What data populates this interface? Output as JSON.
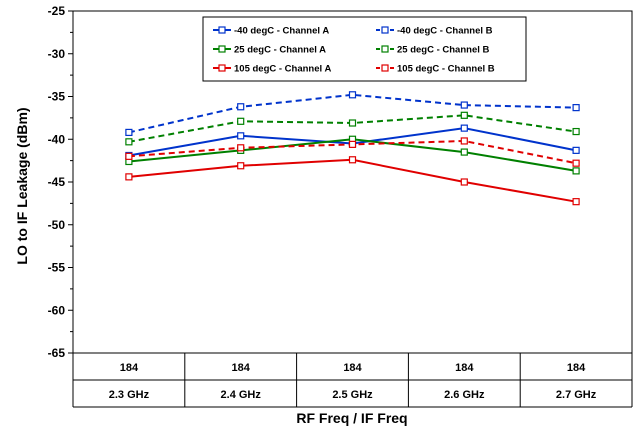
{
  "chart_data": {
    "type": "line",
    "categories": [
      {
        "if_freq": "184",
        "rf_freq": "2.3 GHz"
      },
      {
        "if_freq": "184",
        "rf_freq": "2.4 GHz"
      },
      {
        "if_freq": "184",
        "rf_freq": "2.5 GHz"
      },
      {
        "if_freq": "184",
        "rf_freq": "2.6 GHz"
      },
      {
        "if_freq": "184",
        "rf_freq": "2.7 GHz"
      }
    ],
    "xlabel": "RF Freq / IF Freq",
    "ylabel": "LO to IF Leakage (dBm)",
    "ylim": [
      -65,
      -25
    ],
    "yticks": [
      "-25",
      "-30",
      "-35",
      "-40",
      "-45",
      "-50",
      "-55",
      "-60",
      "-65"
    ],
    "grid": "horizontal off",
    "legend_placement": "top-center",
    "series": [
      {
        "name": "-40 degC - Channel A",
        "color": "#0033cc",
        "dash": "solid",
        "values": [
          -41.9,
          -39.6,
          -40.5,
          -38.7,
          -41.3
        ]
      },
      {
        "name": "-40 degC - Channel B",
        "color": "#0033cc",
        "dash": "dashed",
        "values": [
          -39.2,
          -36.2,
          -34.8,
          -36.0,
          -36.3
        ]
      },
      {
        "name": "25 degC - Channel A",
        "color": "#008000",
        "dash": "solid",
        "values": [
          -42.6,
          -41.3,
          -40.0,
          -41.5,
          -43.7
        ]
      },
      {
        "name": "25 degC - Channel B",
        "color": "#008000",
        "dash": "dashed",
        "values": [
          -40.3,
          -37.9,
          -38.1,
          -37.2,
          -39.1
        ]
      },
      {
        "name": "105 degC - Channel A",
        "color": "#e00000",
        "dash": "solid",
        "values": [
          -44.4,
          -43.1,
          -42.4,
          -45.0,
          -47.3
        ]
      },
      {
        "name": "105 degC - Channel B",
        "color": "#e00000",
        "dash": "dashed",
        "values": [
          -42.0,
          -41.0,
          -40.6,
          -40.2,
          -42.8
        ]
      }
    ]
  }
}
